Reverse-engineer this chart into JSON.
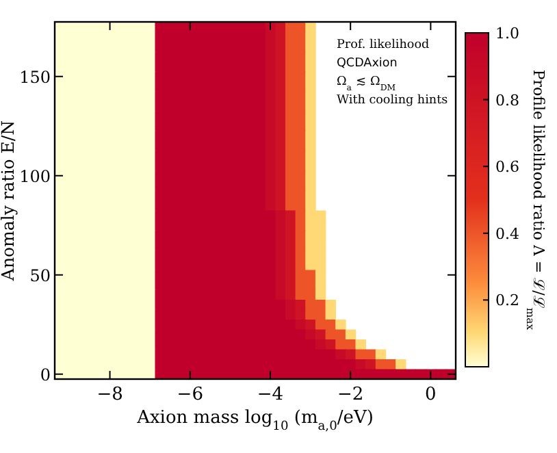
{
  "chart_data": {
    "type": "heatmap",
    "xlabel": "Axion mass log$_{10}$ (m$_{a,0}$/eV)",
    "ylabel": "Anomaly ratio E/N",
    "clabel": "Profile likelihood ratio Λ = ℒ/ℒ$_{max}$",
    "annotations": [
      "Prof. likelihood",
      "QCDAxion",
      "Ω$_{a}$ ≲ Ω$_{DM}$",
      "With cooling hints"
    ],
    "categories": [
      null,
      null,
      null,
      null,
      null,
      "−8",
      null,
      null,
      null,
      null,
      null,
      null,
      null,
      "−6",
      null,
      null,
      null,
      null,
      null,
      null,
      null,
      "−4",
      null,
      null,
      null,
      null,
      null,
      null,
      null,
      "−2",
      null,
      null,
      null,
      null,
      null,
      null,
      null,
      "0",
      null,
      null
    ],
    "y_categories": [
      null,
      null,
      null,
      null,
      null,
      "150",
      null,
      null,
      null,
      null,
      null,
      null,
      null,
      null,
      null,
      "100",
      null,
      null,
      null,
      null,
      null,
      null,
      null,
      null,
      null,
      "50",
      null,
      null,
      null,
      null,
      null,
      null,
      null,
      null,
      null,
      "0"
    ],
    "clim": [
      0,
      1
    ],
    "cticks": [
      {
        "value": 0.2,
        "label": "0.2"
      },
      {
        "value": 0.4,
        "label": "0.4"
      },
      {
        "value": 0.6,
        "label": "0.6"
      },
      {
        "value": 0.8,
        "label": "0.8"
      },
      {
        "value": 1,
        "label": "1.0"
      }
    ],
    "cells": [
      [
        0,
        0,
        0,
        0,
        0,
        0,
        0,
        0,
        0,
        0,
        1,
        1,
        1,
        1,
        1,
        1,
        1,
        1,
        1,
        1,
        1,
        0.9,
        0.8,
        0.4,
        0.4,
        0.1,
        null,
        null,
        null,
        null,
        null,
        null,
        null,
        null,
        null,
        null,
        null,
        null,
        null,
        null
      ],
      [
        0,
        0,
        0,
        0,
        0,
        0,
        0,
        0,
        0,
        0,
        1,
        1,
        1,
        1,
        1,
        1,
        1,
        1,
        1,
        1,
        1,
        0.9,
        0.8,
        0.4,
        0.4,
        0.1,
        null,
        null,
        null,
        null,
        null,
        null,
        null,
        null,
        null,
        null,
        null,
        null,
        null,
        null
      ],
      [
        0,
        0,
        0,
        0,
        0,
        0,
        0,
        0,
        0,
        0,
        1,
        1,
        1,
        1,
        1,
        1,
        1,
        1,
        1,
        1,
        1,
        0.9,
        0.8,
        0.4,
        0.4,
        0.1,
        null,
        null,
        null,
        null,
        null,
        null,
        null,
        null,
        null,
        null,
        null,
        null,
        null,
        null
      ],
      [
        0,
        0,
        0,
        0,
        0,
        0,
        0,
        0,
        0,
        0,
        1,
        1,
        1,
        1,
        1,
        1,
        1,
        1,
        1,
        1,
        1,
        0.9,
        0.8,
        0.4,
        0.4,
        0.1,
        null,
        null,
        null,
        null,
        null,
        null,
        null,
        null,
        null,
        null,
        null,
        null,
        null,
        null
      ],
      [
        0,
        0,
        0,
        0,
        0,
        0,
        0,
        0,
        0,
        0,
        1,
        1,
        1,
        1,
        1,
        1,
        1,
        1,
        1,
        1,
        1,
        0.9,
        0.8,
        0.4,
        0.4,
        0.1,
        null,
        null,
        null,
        null,
        null,
        null,
        null,
        null,
        null,
        null,
        null,
        null,
        null,
        null
      ],
      [
        0,
        0,
        0,
        0,
        0,
        0,
        0,
        0,
        0,
        0,
        1,
        1,
        1,
        1,
        1,
        1,
        1,
        1,
        1,
        1,
        1,
        0.9,
        0.8,
        0.4,
        0.4,
        0.1,
        null,
        null,
        null,
        null,
        null,
        null,
        null,
        null,
        null,
        null,
        null,
        null,
        null,
        null
      ],
      [
        0,
        0,
        0,
        0,
        0,
        0,
        0,
        0,
        0,
        0,
        1,
        1,
        1,
        1,
        1,
        1,
        1,
        1,
        1,
        1,
        1,
        0.9,
        0.8,
        0.4,
        0.4,
        0.1,
        null,
        null,
        null,
        null,
        null,
        null,
        null,
        null,
        null,
        null,
        null,
        null,
        null,
        null
      ],
      [
        0,
        0,
        0,
        0,
        0,
        0,
        0,
        0,
        0,
        0,
        1,
        1,
        1,
        1,
        1,
        1,
        1,
        1,
        1,
        1,
        1,
        0.9,
        0.8,
        0.4,
        0.4,
        0.1,
        null,
        null,
        null,
        null,
        null,
        null,
        null,
        null,
        null,
        null,
        null,
        null,
        null,
        null
      ],
      [
        0,
        0,
        0,
        0,
        0,
        0,
        0,
        0,
        0,
        0,
        1,
        1,
        1,
        1,
        1,
        1,
        1,
        1,
        1,
        1,
        1,
        0.9,
        0.8,
        0.4,
        0.4,
        0.1,
        null,
        null,
        null,
        null,
        null,
        null,
        null,
        null,
        null,
        null,
        null,
        null,
        null,
        null
      ],
      [
        0,
        0,
        0,
        0,
        0,
        0,
        0,
        0,
        0,
        0,
        1,
        1,
        1,
        1,
        1,
        1,
        1,
        1,
        1,
        1,
        1,
        0.9,
        0.8,
        0.4,
        0.4,
        0.1,
        null,
        null,
        null,
        null,
        null,
        null,
        null,
        null,
        null,
        null,
        null,
        null,
        null,
        null
      ],
      [
        0,
        0,
        0,
        0,
        0,
        0,
        0,
        0,
        0,
        0,
        1,
        1,
        1,
        1,
        1,
        1,
        1,
        1,
        1,
        1,
        1,
        0.9,
        0.8,
        0.4,
        0.4,
        0.1,
        null,
        null,
        null,
        null,
        null,
        null,
        null,
        null,
        null,
        null,
        null,
        null,
        null,
        null
      ],
      [
        0,
        0,
        0,
        0,
        0,
        0,
        0,
        0,
        0,
        0,
        1,
        1,
        1,
        1,
        1,
        1,
        1,
        1,
        1,
        1,
        1,
        0.9,
        0.8,
        0.4,
        0.4,
        0.1,
        null,
        null,
        null,
        null,
        null,
        null,
        null,
        null,
        null,
        null,
        null,
        null,
        null,
        null
      ],
      [
        0,
        0,
        0,
        0,
        0,
        0,
        0,
        0,
        0,
        0,
        1,
        1,
        1,
        1,
        1,
        1,
        1,
        1,
        1,
        1,
        1,
        0.9,
        0.8,
        0.4,
        0.4,
        0.1,
        null,
        null,
        null,
        null,
        null,
        null,
        null,
        null,
        null,
        null,
        null,
        null,
        null,
        null
      ],
      [
        0,
        0,
        0,
        0,
        0,
        0,
        0,
        0,
        0,
        0,
        1,
        1,
        1,
        1,
        1,
        1,
        1,
        1,
        1,
        1,
        1,
        0.9,
        0.8,
        0.4,
        0.4,
        0.1,
        null,
        null,
        null,
        null,
        null,
        null,
        null,
        null,
        null,
        null,
        null,
        null,
        null,
        null
      ],
      [
        0,
        0,
        0,
        0,
        0,
        0,
        0,
        0,
        0,
        0,
        1,
        1,
        1,
        1,
        1,
        1,
        1,
        1,
        1,
        1,
        1,
        0.9,
        0.8,
        0.4,
        0.4,
        0.1,
        null,
        null,
        null,
        null,
        null,
        null,
        null,
        null,
        null,
        null,
        null,
        null,
        null,
        null
      ],
      [
        0,
        0,
        0,
        0,
        0,
        0,
        0,
        0,
        0,
        0,
        1,
        1,
        1,
        1,
        1,
        1,
        1,
        1,
        1,
        1,
        1,
        0.9,
        0.8,
        0.4,
        0.4,
        0.1,
        null,
        null,
        null,
        null,
        null,
        null,
        null,
        null,
        null,
        null,
        null,
        null,
        null,
        null
      ],
      [
        0,
        0,
        0,
        0,
        0,
        0,
        0,
        0,
        0,
        0,
        1,
        1,
        1,
        1,
        1,
        1,
        1,
        1,
        1,
        1,
        1,
        0.9,
        0.8,
        0.4,
        0.4,
        0.1,
        null,
        null,
        null,
        null,
        null,
        null,
        null,
        null,
        null,
        null,
        null,
        null,
        null,
        null
      ],
      [
        0,
        0,
        0,
        0,
        0,
        0,
        0,
        0,
        0,
        0,
        1,
        1,
        1,
        1,
        1,
        1,
        1,
        1,
        1,
        1,
        1,
        0.9,
        0.8,
        0.4,
        0.4,
        0.1,
        null,
        null,
        null,
        null,
        null,
        null,
        null,
        null,
        null,
        null,
        null,
        null,
        null,
        null
      ],
      [
        0,
        0,
        0,
        0,
        0,
        0,
        0,
        0,
        0,
        0,
        1,
        1,
        1,
        1,
        1,
        1,
        1,
        1,
        1,
        1,
        1,
        0.9,
        0.8,
        0.4,
        0.4,
        0.1,
        null,
        null,
        null,
        null,
        null,
        null,
        null,
        null,
        null,
        null,
        null,
        null,
        null,
        null
      ],
      [
        0,
        0,
        0,
        0,
        0,
        0,
        0,
        0,
        0,
        0,
        1,
        1,
        1,
        1,
        1,
        1,
        1,
        1,
        1,
        1,
        1,
        1,
        0.9,
        0.8,
        0.4,
        0.1,
        0.1,
        null,
        null,
        null,
        null,
        null,
        null,
        null,
        null,
        null,
        null,
        null,
        null,
        null
      ],
      [
        0,
        0,
        0,
        0,
        0,
        0,
        0,
        0,
        0,
        0,
        1,
        1,
        1,
        1,
        1,
        1,
        1,
        1,
        1,
        1,
        1,
        1,
        0.9,
        0.8,
        0.4,
        0.1,
        0.1,
        null,
        null,
        null,
        null,
        null,
        null,
        null,
        null,
        null,
        null,
        null,
        null,
        null
      ],
      [
        0,
        0,
        0,
        0,
        0,
        0,
        0,
        0,
        0,
        0,
        1,
        1,
        1,
        1,
        1,
        1,
        1,
        1,
        1,
        1,
        1,
        1,
        0.9,
        0.8,
        0.4,
        0.1,
        0.1,
        null,
        null,
        null,
        null,
        null,
        null,
        null,
        null,
        null,
        null,
        null,
        null,
        null
      ],
      [
        0,
        0,
        0,
        0,
        0,
        0,
        0,
        0,
        0,
        0,
        1,
        1,
        1,
        1,
        1,
        1,
        1,
        1,
        1,
        1,
        1,
        1,
        0.9,
        0.8,
        0.4,
        0.1,
        0.1,
        null,
        null,
        null,
        null,
        null,
        null,
        null,
        null,
        null,
        null,
        null,
        null,
        null
      ],
      [
        0,
        0,
        0,
        0,
        0,
        0,
        0,
        0,
        0,
        0,
        1,
        1,
        1,
        1,
        1,
        1,
        1,
        1,
        1,
        1,
        1,
        1,
        0.9,
        0.8,
        0.4,
        0.1,
        0.1,
        null,
        null,
        null,
        null,
        null,
        null,
        null,
        null,
        null,
        null,
        null,
        null,
        null
      ],
      [
        0,
        0,
        0,
        0,
        0,
        0,
        0,
        0,
        0,
        0,
        1,
        1,
        1,
        1,
        1,
        1,
        1,
        1,
        1,
        1,
        1,
        1,
        0.9,
        0.8,
        0.4,
        0.1,
        0.1,
        null,
        null,
        null,
        null,
        null,
        null,
        null,
        null,
        null,
        null,
        null,
        null,
        null
      ],
      [
        0,
        0,
        0,
        0,
        0,
        0,
        0,
        0,
        0,
        0,
        1,
        1,
        1,
        1,
        1,
        1,
        1,
        1,
        1,
        1,
        1,
        1,
        0.9,
        0.8,
        0.4,
        0.4,
        0.1,
        null,
        null,
        null,
        null,
        null,
        null,
        null,
        null,
        null,
        null,
        null,
        null,
        null
      ],
      [
        0,
        0,
        0,
        0,
        0,
        0,
        0,
        0,
        0,
        0,
        1,
        1,
        1,
        1,
        1,
        1,
        1,
        1,
        1,
        1,
        1,
        1,
        0.9,
        0.8,
        0.4,
        0.4,
        0.1,
        null,
        null,
        null,
        null,
        null,
        null,
        null,
        null,
        null,
        null,
        null,
        null,
        null
      ],
      [
        0,
        0,
        0,
        0,
        0,
        0,
        0,
        0,
        0,
        0,
        1,
        1,
        1,
        1,
        1,
        1,
        1,
        1,
        1,
        1,
        1,
        1,
        0.9,
        0.8,
        0.4,
        0.4,
        0.1,
        null,
        null,
        null,
        null,
        null,
        null,
        null,
        null,
        null,
        null,
        null,
        null,
        null
      ],
      [
        0,
        0,
        0,
        0,
        0,
        0,
        0,
        0,
        0,
        0,
        1,
        1,
        1,
        1,
        1,
        1,
        1,
        1,
        1,
        1,
        1,
        1,
        1,
        0.9,
        0.8,
        0.4,
        0.4,
        0.1,
        null,
        null,
        null,
        null,
        null,
        null,
        null,
        null,
        null,
        null,
        null,
        null
      ],
      [
        0,
        0,
        0,
        0,
        0,
        0,
        0,
        0,
        0,
        0,
        1,
        1,
        1,
        1,
        1,
        1,
        1,
        1,
        1,
        1,
        1,
        1,
        1,
        0.9,
        0.8,
        0.4,
        0.4,
        0.1,
        null,
        null,
        null,
        null,
        null,
        null,
        null,
        null,
        null,
        null,
        null,
        null
      ],
      [
        0,
        0,
        0,
        0,
        0,
        0,
        0,
        0,
        0,
        0,
        1,
        1,
        1,
        1,
        1,
        1,
        1,
        1,
        1,
        1,
        1,
        1,
        1,
        1,
        0.9,
        0.8,
        0.4,
        0.4,
        0.1,
        null,
        null,
        null,
        null,
        null,
        null,
        null,
        null,
        null,
        null,
        null
      ],
      [
        0,
        0,
        0,
        0,
        0,
        0,
        0,
        0,
        0,
        0,
        1,
        1,
        1,
        1,
        1,
        1,
        1,
        1,
        1,
        1,
        1,
        1,
        1,
        1,
        1,
        0.9,
        0.8,
        0.4,
        0.4,
        0.1,
        null,
        null,
        null,
        null,
        null,
        null,
        null,
        null,
        null,
        null
      ],
      [
        0,
        0,
        0,
        0,
        0,
        0,
        0,
        0,
        0,
        0,
        1,
        1,
        1,
        1,
        1,
        1,
        1,
        1,
        1,
        1,
        1,
        1,
        1,
        1,
        1,
        1,
        0.9,
        0.8,
        0.4,
        0.4,
        0.1,
        null,
        null,
        null,
        null,
        null,
        null,
        null,
        null,
        null
      ],
      [
        0,
        0,
        0,
        0,
        0,
        0,
        0,
        0,
        0,
        0,
        1,
        1,
        1,
        1,
        1,
        1,
        1,
        1,
        1,
        1,
        1,
        1,
        1,
        1,
        1,
        1,
        1,
        1,
        0.9,
        0.8,
        0.4,
        0.4,
        0.1,
        null,
        null,
        null,
        null,
        null,
        null,
        null
      ],
      [
        0,
        0,
        0,
        0,
        0,
        0,
        0,
        0,
        0,
        0,
        1,
        1,
        1,
        1,
        1,
        1,
        1,
        1,
        1,
        1,
        1,
        1,
        1,
        1,
        1,
        1,
        1,
        1,
        1,
        1,
        0.9,
        0.8,
        0.4,
        0.4,
        0.1,
        null,
        null,
        null,
        null,
        null
      ],
      [
        0,
        0,
        0,
        0,
        0,
        0,
        0,
        0,
        0,
        0,
        1,
        1,
        1,
        1,
        1,
        1,
        1,
        1,
        1,
        1,
        1,
        1,
        1,
        1,
        1,
        1,
        1,
        1,
        1,
        1,
        1,
        1,
        1,
        1,
        1,
        1,
        1,
        1,
        1,
        1
      ]
    ]
  }
}
